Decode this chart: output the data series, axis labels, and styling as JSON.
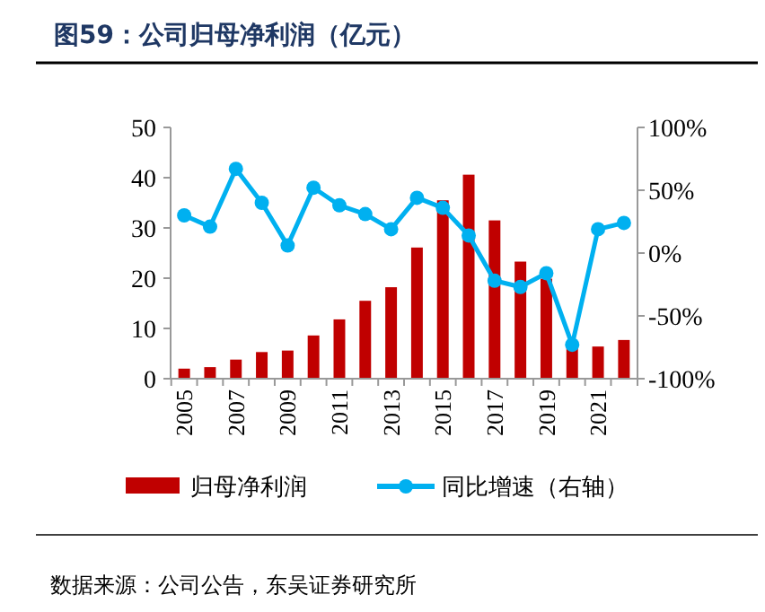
{
  "chart_data": {
    "type": "bar",
    "title": "图59：公司归母净利润（亿元）",
    "categories": [
      "2005",
      null,
      "2007",
      null,
      "2009",
      null,
      "2011",
      null,
      "2013",
      null,
      "2015",
      null,
      "2017",
      null,
      "2019",
      null,
      "2021",
      null
    ],
    "series": [
      {
        "name": "归母净利润",
        "color": "#c00000",
        "values": [
          2,
          2.3,
          3.8,
          5.3,
          5.6,
          8.6,
          11.8,
          15.5,
          18.2,
          26.1,
          35.5,
          40.6,
          31.5,
          23.3,
          19.9,
          6.5,
          6.4,
          7.7
        ]
      },
      {
        "name": "同比增速（右轴）",
        "type": "line",
        "axis": "y2",
        "color": "#00b0f0",
        "values": [
          30,
          21,
          67,
          40,
          6,
          52,
          38,
          31,
          19,
          44,
          36,
          14,
          -22,
          -27,
          -16,
          -73,
          19,
          24
        ]
      }
    ],
    "ylim": [
      0,
      50
    ],
    "yticks": [
      0,
      10,
      20,
      30,
      40,
      50
    ],
    "y2lim": [
      -100,
      100
    ],
    "y2ticks": [
      {
        "value": -100,
        "label": "-100%"
      },
      {
        "value": -50,
        "label": "-50%"
      },
      {
        "value": 0,
        "label": "0%"
      },
      {
        "value": 50,
        "label": "50%"
      },
      {
        "value": 100,
        "label": "100%"
      }
    ],
    "marker": "circle",
    "legend": "bottom",
    "grid": false,
    "annotations": [
      "数据来源：公司公告，东吴证券研究所"
    ]
  }
}
